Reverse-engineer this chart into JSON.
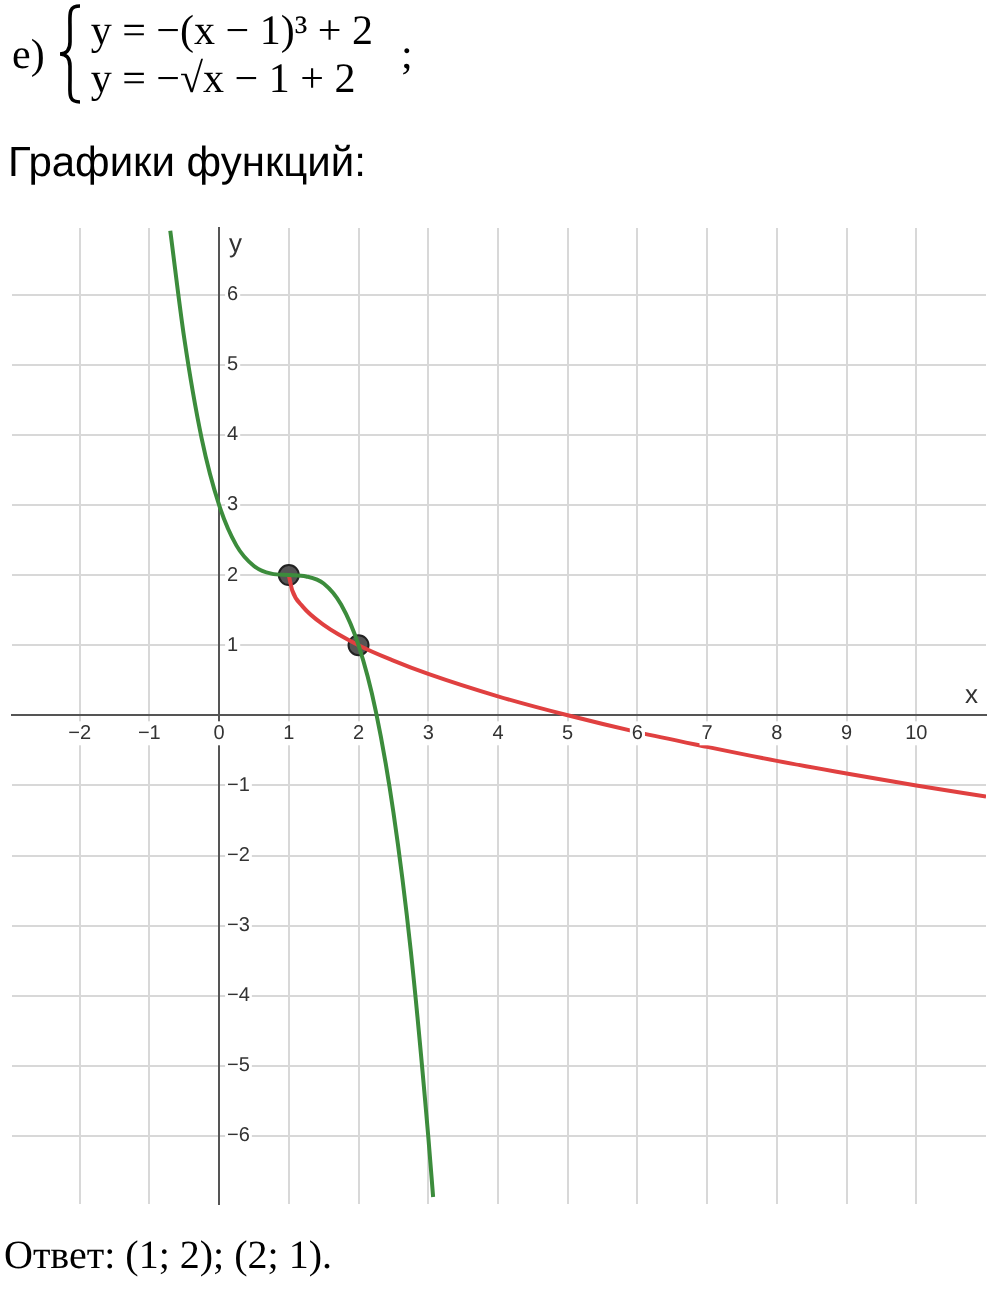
{
  "chart_data": {
    "type": "line",
    "title": "Графики функций:",
    "xlabel": "x",
    "ylabel": "y",
    "annotations": [
      "e)",
      "y = −(x − 1)³ + 2",
      "y = −√x − 1 + 2",
      ";",
      "Ответ: (1; 2); (2; 1)."
    ],
    "xlim": [
      -2.97,
      11
    ],
    "ylim": [
      -6.97,
      6.95
    ],
    "xticks": [
      -2,
      -1,
      0,
      1,
      2,
      3,
      4,
      5,
      6,
      7,
      8,
      9,
      10
    ],
    "yticks": [
      -6,
      -5,
      -4,
      -3,
      -2,
      -1,
      1,
      2,
      3,
      4,
      5,
      6
    ],
    "grid": true,
    "legend": false,
    "marker": "none",
    "line_style": "solid",
    "series": [
      {
        "type": "line",
        "color": "#3c8c3c",
        "x": [
          -0.7,
          -0.5,
          -0.25,
          0,
          0.25,
          0.5,
          0.75,
          1,
          1.25,
          1.5,
          1.75,
          2,
          2.25,
          2.5,
          2.75,
          3,
          3.07
        ],
        "values": [
          6.91,
          5.38,
          3.95,
          3,
          2.42,
          2.13,
          2.02,
          2,
          1.98,
          1.88,
          1.58,
          1,
          0.05,
          -1.38,
          -3.36,
          -6,
          -6.87
        ]
      },
      {
        "type": "line",
        "color": "#e04040",
        "x": [
          1,
          1.05,
          1.2,
          1.5,
          2,
          2.5,
          3,
          4,
          5,
          6,
          7,
          8,
          9,
          10,
          11
        ],
        "values": [
          2,
          1.78,
          1.55,
          1.29,
          1,
          0.78,
          0.59,
          0.27,
          0,
          -0.24,
          -0.45,
          -0.65,
          -0.83,
          -1,
          -1.16
        ]
      },
      {
        "type": "scatter",
        "color": "#555555",
        "marker": "circle",
        "x": [
          1,
          2
        ],
        "values": [
          2,
          1
        ]
      }
    ]
  }
}
